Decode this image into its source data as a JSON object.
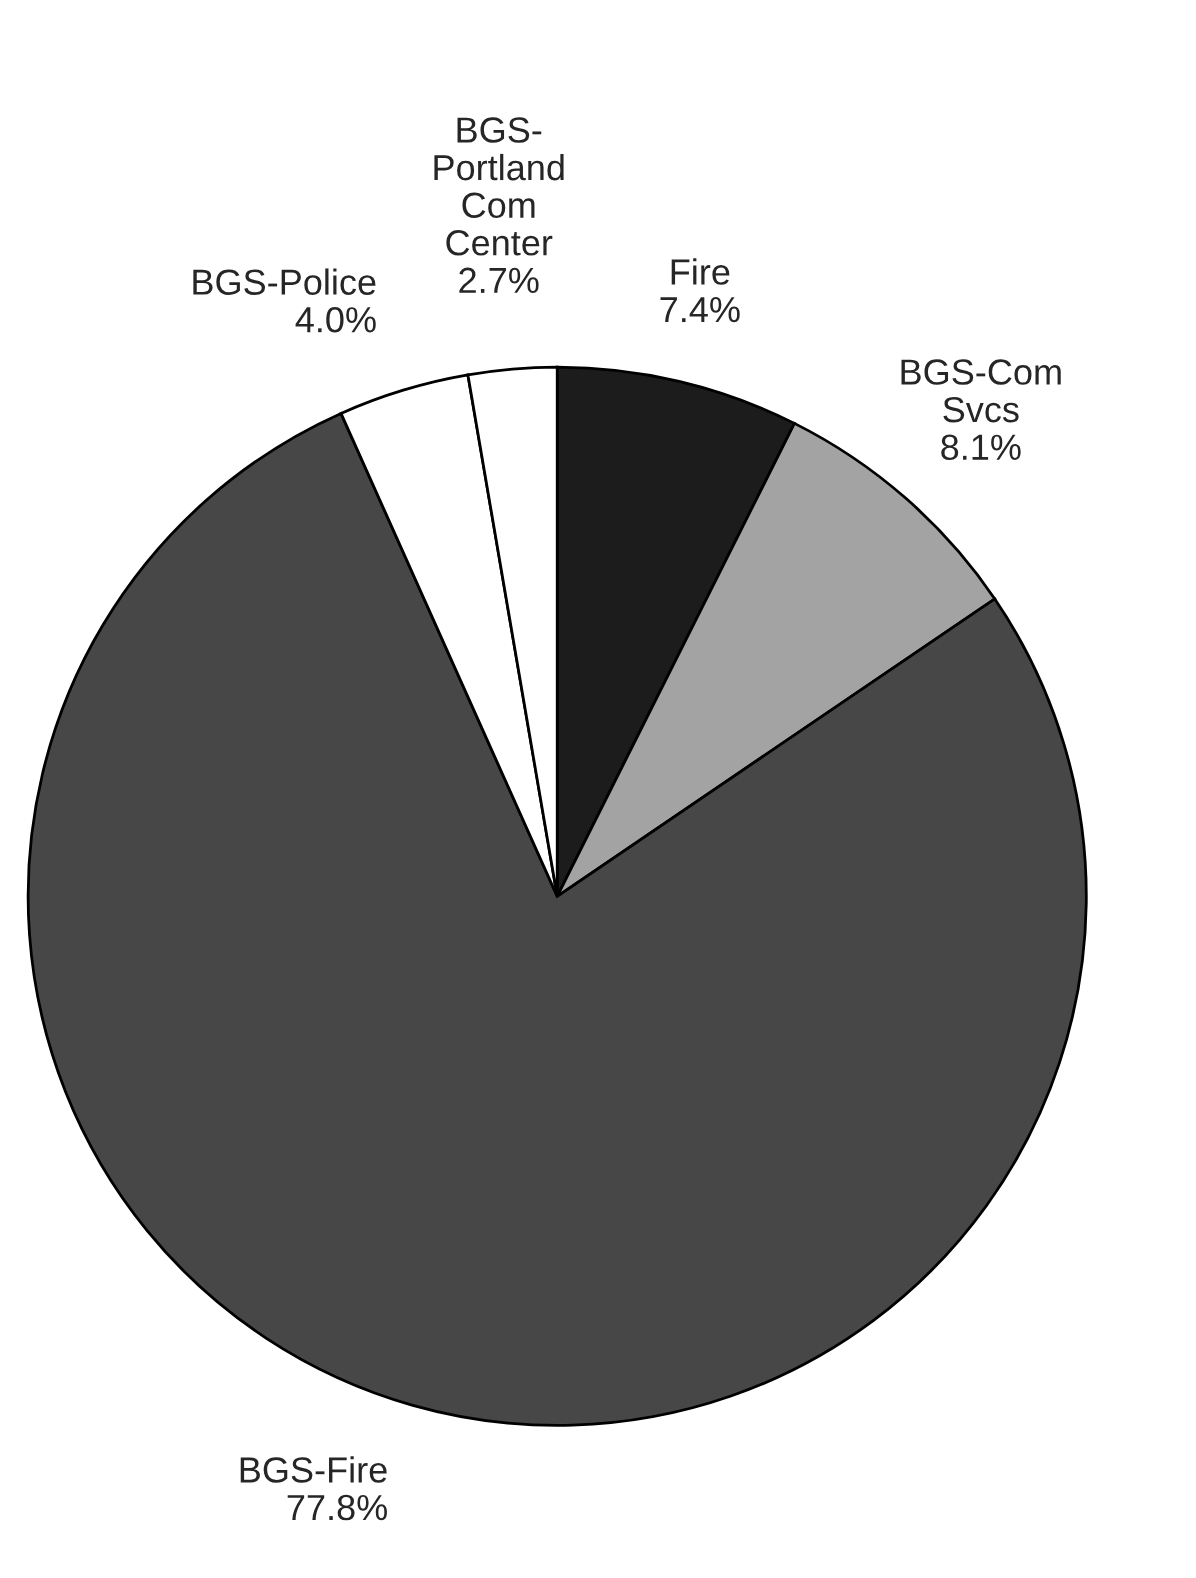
{
  "chart_data": {
    "type": "pie",
    "categories": [
      "Fire",
      "BGS-Com\nSvcs",
      "BGS-Fire",
      "BGS-Police",
      "BGS-\nPortland\nCom\nCenter"
    ],
    "values": [
      7.4,
      8.1,
      77.8,
      4.0,
      2.7
    ],
    "value_labels": [
      "7.4%",
      "8.1%",
      "77.8%",
      "4.0%",
      "2.7%"
    ],
    "colors": [
      "#1c1c1c",
      "#a3a3a3",
      "#474747",
      "#ffffff",
      "#ffffff"
    ]
  }
}
